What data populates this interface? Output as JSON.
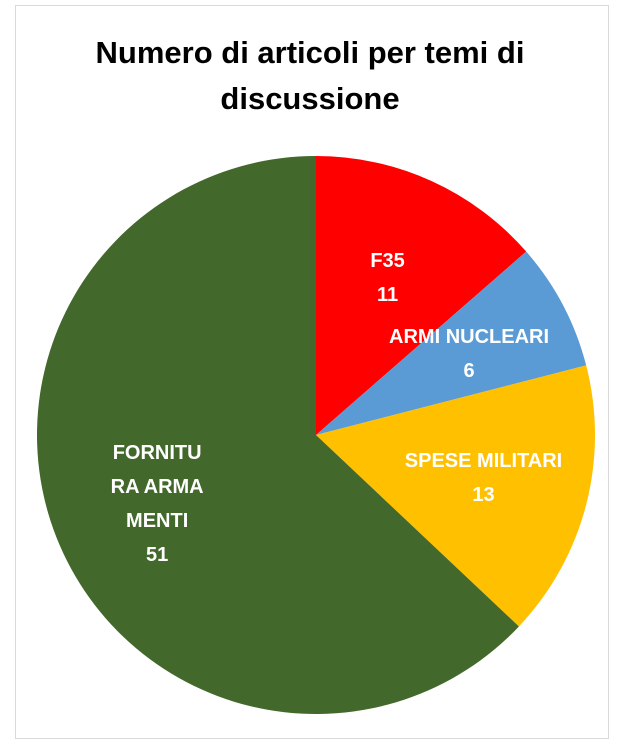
{
  "chart_data": {
    "type": "pie",
    "title": "Numero di articoli per temi di discussione",
    "categories": [
      "F35",
      "ARMI NUCLEARI",
      "SPESE MILITARI",
      "FORNITURA ARMAMENTI"
    ],
    "values": [
      11,
      6,
      13,
      51
    ],
    "colors": [
      "#ff0000",
      "#5b9bd5",
      "#ffc000",
      "#43682b"
    ]
  }
}
